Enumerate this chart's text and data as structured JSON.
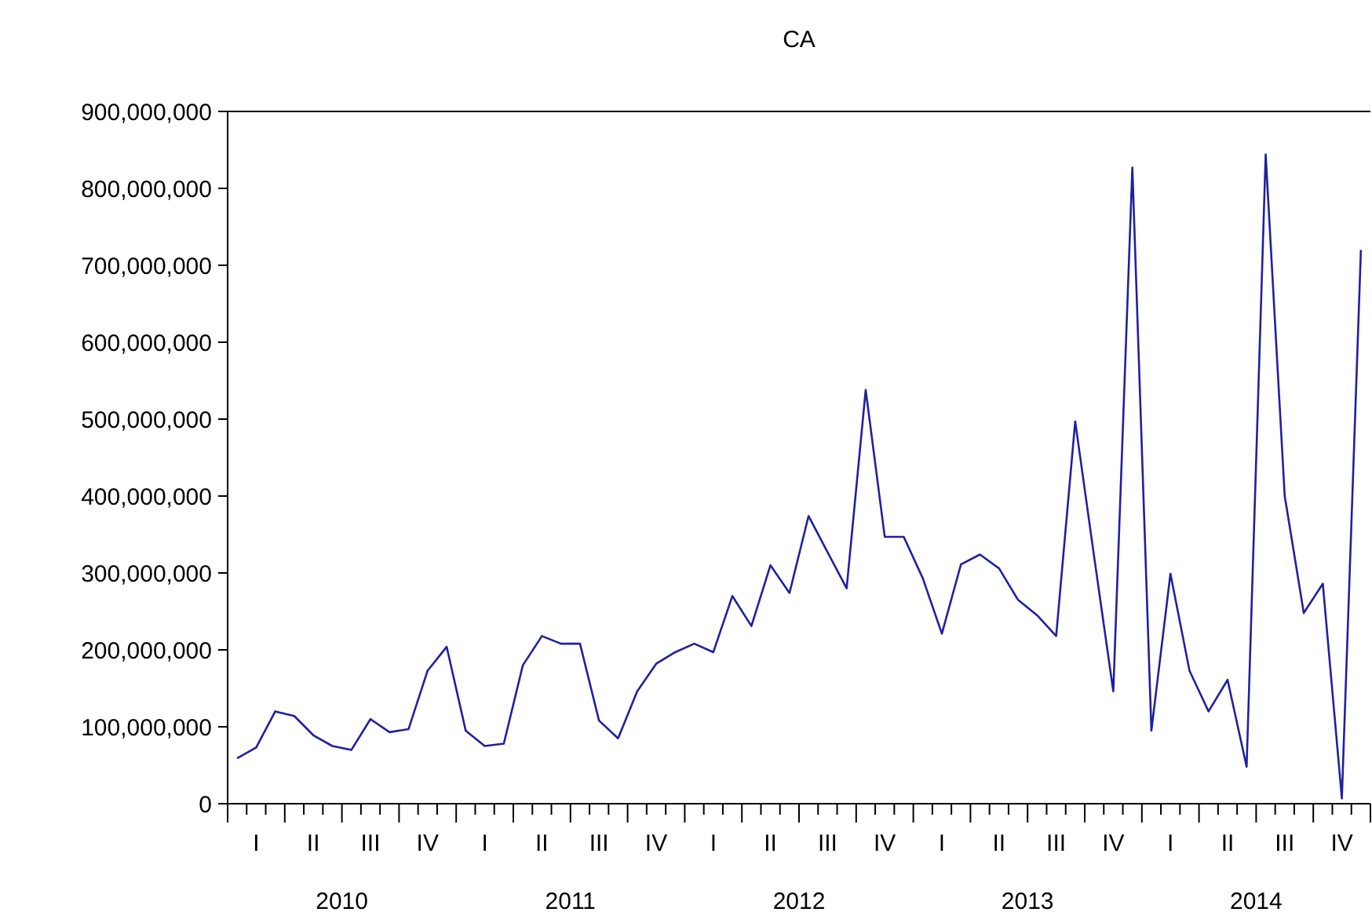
{
  "chart_data": {
    "type": "line",
    "title": "CA",
    "categories": [
      null,
      "I",
      null,
      null,
      "II",
      null,
      null,
      "III",
      null,
      null,
      "IV",
      null,
      null,
      "I",
      null,
      null,
      "II",
      null,
      null,
      "III",
      null,
      null,
      "IV",
      null,
      null,
      "I",
      null,
      null,
      "II",
      null,
      null,
      "III",
      null,
      null,
      "IV",
      null,
      null,
      "I",
      null,
      null,
      "II",
      null,
      null,
      "III",
      null,
      null,
      "IV",
      null,
      null,
      "I",
      null,
      null,
      "II",
      null,
      null,
      "III",
      null,
      null,
      "IV",
      null
    ],
    "series": [
      {
        "color": "#2020a0",
        "values": [
          59000000,
          73000000,
          120000000,
          114000000,
          89000000,
          75000000,
          70000000,
          110000000,
          93000000,
          97000000,
          173000000,
          204000000,
          95000000,
          75000000,
          78000000,
          180000000,
          218000000,
          208000000,
          208000000,
          108000000,
          85000000,
          146000000,
          182000000,
          197000000,
          208000000,
          197000000,
          270000000,
          231000000,
          310000000,
          274000000,
          374000000,
          327000000,
          280000000,
          538000000,
          347000000,
          347000000,
          293000000,
          221000000,
          311000000,
          324000000,
          306000000,
          265000000,
          245000000,
          218000000,
          497000000,
          320000000,
          146000000,
          827000000,
          95000000,
          299000000,
          173000000,
          120000000,
          161000000,
          48000000,
          844000000,
          400000000,
          248000000,
          286000000,
          7000000,
          720000000
        ]
      }
    ],
    "ylim": [
      0,
      900000000
    ],
    "yticks": [
      {
        "value": 0,
        "label": "0"
      },
      {
        "value": 100000000,
        "label": "100,000,000"
      },
      {
        "value": 200000000,
        "label": "200,000,000"
      },
      {
        "value": 300000000,
        "label": "300,000,000"
      },
      {
        "value": 400000000,
        "label": "400,000,000"
      },
      {
        "value": 500000000,
        "label": "500,000,000"
      },
      {
        "value": 600000000,
        "label": "600,000,000"
      },
      {
        "value": 700000000,
        "label": "700,000,000"
      },
      {
        "value": 800000000,
        "label": "800,000,000"
      },
      {
        "value": 900000000,
        "label": "900,000,000"
      }
    ],
    "annotations": [
      "2010",
      "2011",
      "2012",
      "2013",
      "2014"
    ],
    "grid": false,
    "line_style": "solid",
    "marker": "none"
  }
}
